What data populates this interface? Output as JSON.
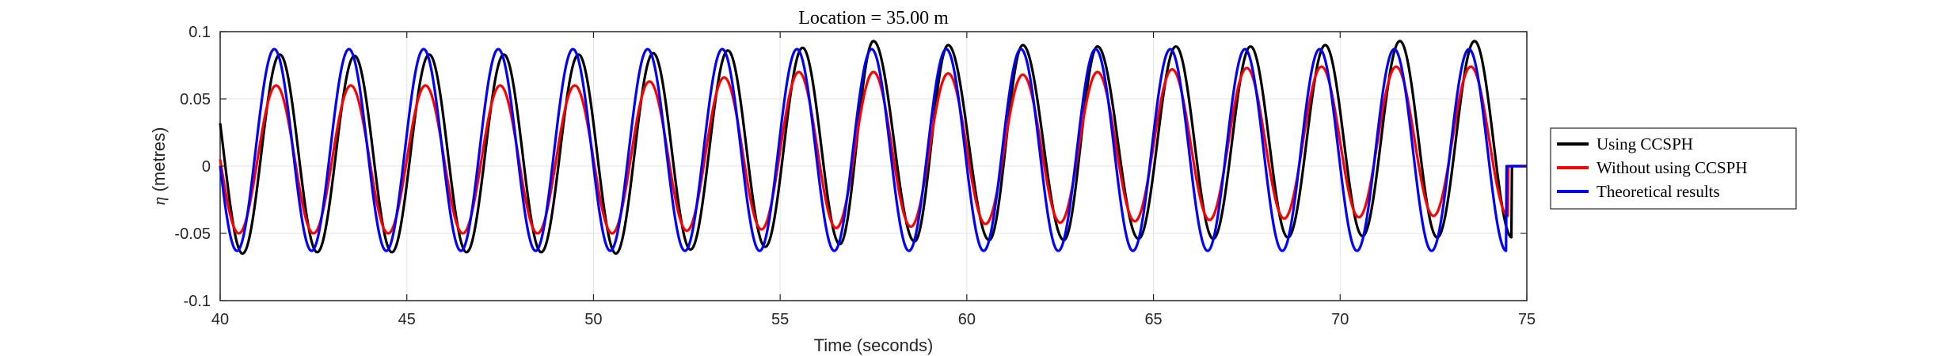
{
  "chart_data": {
    "type": "line",
    "title": "Location = 35.00 m",
    "xlabel": "Time (seconds)",
    "ylabel_symbol": "η",
    "ylabel_unit": " (metres)",
    "xlim": [
      40,
      75
    ],
    "ylim": [
      -0.1,
      0.1
    ],
    "xticks": [
      40,
      45,
      50,
      55,
      60,
      65,
      70,
      75
    ],
    "yticks": [
      -0.1,
      -0.05,
      0,
      0.05,
      0.1
    ],
    "xtick_labels": [
      "40",
      "45",
      "50",
      "55",
      "60",
      "65",
      "70",
      "75"
    ],
    "ytick_labels": [
      "-0.1",
      "-0.05",
      "0",
      "0.05",
      "0.1"
    ],
    "grid": true,
    "legend_position": "right-outside",
    "period": 2.0,
    "series": [
      {
        "name": "Using CCSPH",
        "color": "#000000",
        "peak_times": [
          41.6,
          43.6,
          45.6,
          47.6,
          49.6,
          51.6,
          53.6,
          55.6,
          57.5,
          59.5,
          61.5,
          63.5,
          65.6,
          67.6,
          69.6,
          71.6,
          73.6
        ],
        "peak_values": [
          0.083,
          0.082,
          0.083,
          0.083,
          0.083,
          0.084,
          0.086,
          0.088,
          0.093,
          0.09,
          0.09,
          0.089,
          0.089,
          0.089,
          0.09,
          0.093,
          0.093
        ],
        "trough_times": [
          40.6,
          42.6,
          44.6,
          46.6,
          48.6,
          50.6,
          52.6,
          54.6,
          56.6,
          58.6,
          60.6,
          62.6,
          64.6,
          66.6,
          68.6,
          70.6,
          72.6
        ],
        "trough_values": [
          -0.065,
          -0.064,
          -0.064,
          -0.064,
          -0.064,
          -0.065,
          -0.062,
          -0.06,
          -0.058,
          -0.056,
          -0.055,
          -0.055,
          -0.054,
          -0.054,
          -0.053,
          -0.052,
          -0.053
        ],
        "start_value": 0.022,
        "end_value": -0.038
      },
      {
        "name": "Without using CCSPH",
        "color": "#ff0000",
        "peak_times": [
          41.5,
          43.5,
          45.5,
          47.5,
          49.5,
          51.5,
          53.5,
          55.5,
          57.5,
          59.5,
          61.5,
          63.5,
          65.5,
          67.5,
          69.5,
          71.5,
          73.5
        ],
        "peak_values": [
          0.06,
          0.06,
          0.06,
          0.06,
          0.06,
          0.063,
          0.066,
          0.07,
          0.07,
          0.069,
          0.068,
          0.07,
          0.072,
          0.073,
          0.074,
          0.074,
          0.074
        ],
        "trough_times": [
          40.5,
          42.5,
          44.5,
          46.5,
          48.5,
          50.5,
          52.5,
          54.5,
          56.5,
          58.5,
          60.5,
          62.5,
          64.5,
          66.5,
          68.5,
          70.5,
          72.5
        ],
        "trough_values": [
          -0.05,
          -0.05,
          -0.05,
          -0.05,
          -0.05,
          -0.05,
          -0.048,
          -0.047,
          -0.046,
          -0.045,
          -0.043,
          -0.042,
          -0.041,
          -0.04,
          -0.039,
          -0.038,
          -0.037
        ],
        "start_value": 0.018,
        "end_value": -0.042
      },
      {
        "name": "Theoretical results",
        "color": "#0000ff",
        "peak_times": [
          41.45,
          43.45,
          45.45,
          47.45,
          49.45,
          51.45,
          53.45,
          55.45,
          57.45,
          59.45,
          61.45,
          63.45,
          65.45,
          67.45,
          69.45,
          71.45,
          73.45
        ],
        "peak_values": [
          0.087,
          0.087,
          0.087,
          0.087,
          0.087,
          0.087,
          0.087,
          0.087,
          0.087,
          0.087,
          0.087,
          0.087,
          0.087,
          0.087,
          0.087,
          0.087,
          0.087
        ],
        "trough_times": [
          40.45,
          42.45,
          44.45,
          46.45,
          48.45,
          50.45,
          52.45,
          54.45,
          56.45,
          58.45,
          60.45,
          62.45,
          64.45,
          66.45,
          68.45,
          70.45,
          72.45
        ],
        "trough_values": [
          -0.063,
          -0.063,
          -0.063,
          -0.063,
          -0.063,
          -0.063,
          -0.063,
          -0.063,
          -0.063,
          -0.063,
          -0.063,
          -0.063,
          -0.063,
          -0.063,
          -0.063,
          -0.063,
          -0.063
        ],
        "start_value": -0.015,
        "end_value": -0.01
      }
    ]
  }
}
